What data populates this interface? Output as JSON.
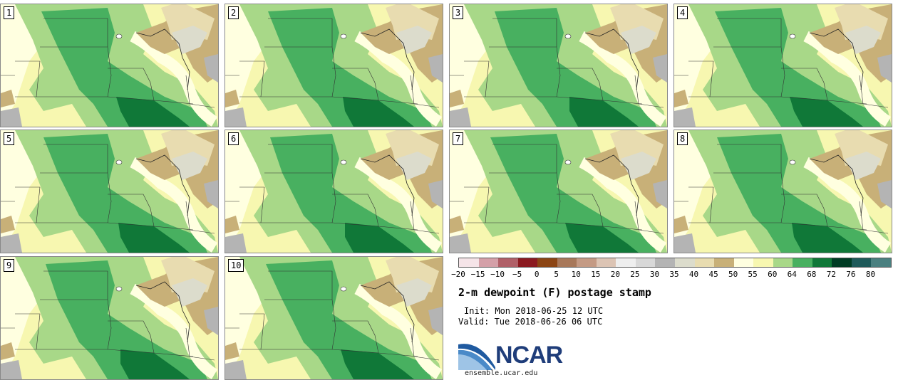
{
  "panels": [
    {
      "label": "1"
    },
    {
      "label": "2"
    },
    {
      "label": "3"
    },
    {
      "label": "4"
    },
    {
      "label": "5"
    },
    {
      "label": "6"
    },
    {
      "label": "7"
    },
    {
      "label": "8"
    },
    {
      "label": "9"
    },
    {
      "label": "10"
    }
  ],
  "colorbar": {
    "colors": [
      "#f5e4e8",
      "#d4a0a8",
      "#b06068",
      "#8b1a20",
      "#8c4514",
      "#a8785a",
      "#c49a84",
      "#dcc4b4",
      "#eeeeee",
      "#d8d8d8",
      "#b4b4b4",
      "#dcdccc",
      "#e8dcb0",
      "#c8b078",
      "#ffffe0",
      "#f7f7b0",
      "#a8d888",
      "#48b060",
      "#107838",
      "#003c24",
      "#1e5a5a",
      "#4a8080"
    ],
    "ticks": [
      "−20",
      "−15",
      "−10",
      "−5",
      "0",
      "5",
      "10",
      "15",
      "20",
      "25",
      "30",
      "35",
      "40",
      "45",
      "50",
      "55",
      "60",
      "64",
      "68",
      "72",
      "76",
      "80"
    ]
  },
  "title": "2-m dewpoint (F) postage stamp",
  "init": "Init: Mon 2018-06-25 12 UTC",
  "valid": "Valid: Tue 2018-06-26 06 UTC",
  "logo": {
    "text": "NCAR",
    "url": "ensemble.ucar.edu",
    "accent": "#1f5aa0"
  }
}
